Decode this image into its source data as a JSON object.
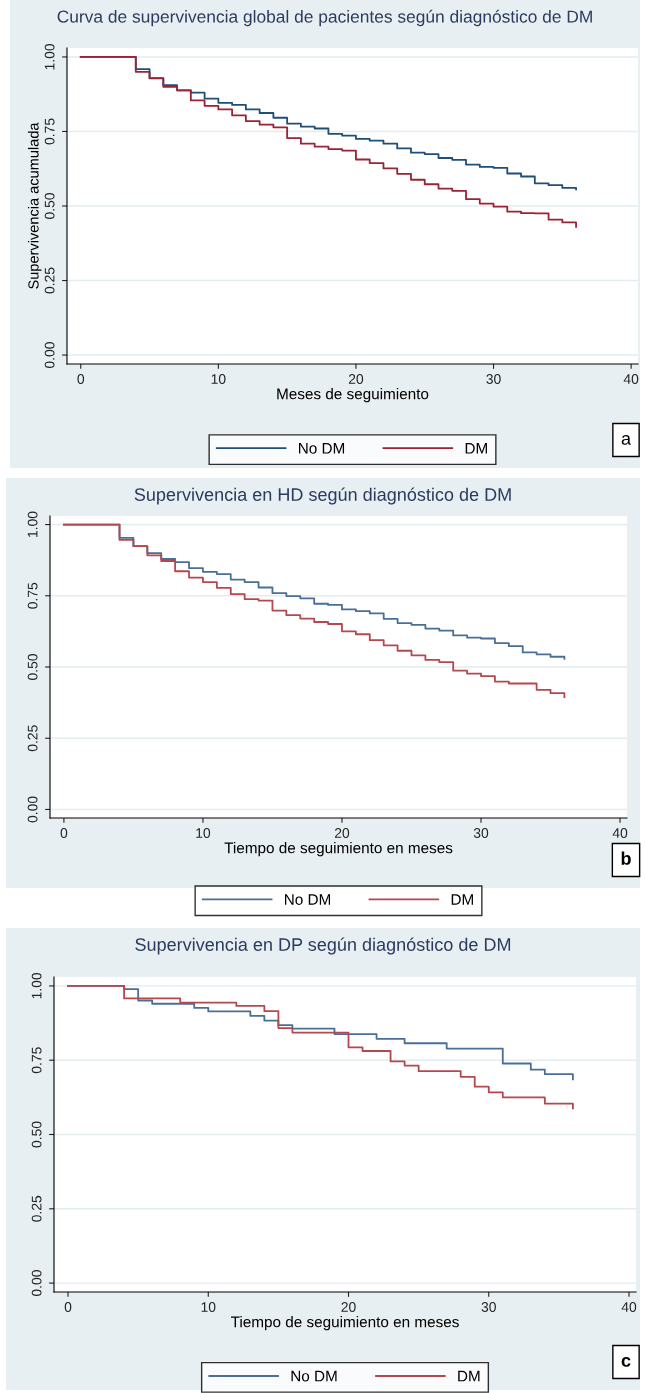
{
  "chart_data": [
    {
      "type": "step",
      "title": "Curva de supervivencia global de pacientes según diagnóstico de DM",
      "xlabel": "Meses de seguimiento",
      "ylabel": "Supervivencia acumulada",
      "annotations": [
        "a"
      ],
      "series": [
        {
          "name": "No DM",
          "color": "#1f4e79",
          "x": [
            0,
            4,
            5,
            6,
            7,
            8,
            9,
            10,
            11,
            12,
            13,
            14,
            15,
            16,
            17,
            18,
            19,
            20,
            21,
            22,
            23,
            24,
            25,
            26,
            27,
            28,
            29,
            30,
            31,
            32,
            33,
            34,
            35,
            36
          ],
          "values": [
            1,
            0.959,
            0.928,
            0.905,
            0.888,
            0.88,
            0.86,
            0.846,
            0.839,
            0.824,
            0.812,
            0.796,
            0.776,
            0.766,
            0.76,
            0.742,
            0.736,
            0.725,
            0.719,
            0.709,
            0.693,
            0.679,
            0.674,
            0.661,
            0.655,
            0.639,
            0.631,
            0.628,
            0.609,
            0.599,
            0.576,
            0.57,
            0.561,
            0.556
          ]
        },
        {
          "name": "DM",
          "color": "#9b2335",
          "x": [
            0,
            4,
            5,
            6,
            7,
            8,
            9,
            10,
            11,
            12,
            13,
            14,
            15,
            16,
            17,
            18,
            19,
            20,
            21,
            22,
            23,
            24,
            25,
            26,
            27,
            28,
            29,
            30,
            31,
            32,
            33,
            34,
            35,
            36
          ],
          "values": [
            1,
            0.95,
            0.929,
            0.9,
            0.888,
            0.854,
            0.836,
            0.824,
            0.804,
            0.785,
            0.773,
            0.764,
            0.728,
            0.709,
            0.699,
            0.691,
            0.686,
            0.656,
            0.644,
            0.626,
            0.608,
            0.588,
            0.573,
            0.558,
            0.551,
            0.523,
            0.508,
            0.498,
            0.481,
            0.476,
            0.475,
            0.454,
            0.445,
            0.43
          ]
        }
      ],
      "xlim": [
        -1,
        40.5
      ],
      "ylim": [
        -0.03,
        1.03
      ],
      "xticks": [
        0,
        10,
        20,
        30,
        40
      ],
      "yticks": [
        {
          "value": 0,
          "label": "0.00"
        },
        {
          "value": 0.25,
          "label": "0.25"
        },
        {
          "value": 0.5,
          "label": "0.50"
        },
        {
          "value": 0.75,
          "label": "0.75"
        },
        {
          "value": 1,
          "label": "1.00"
        }
      ],
      "grid": "y",
      "legend": "bottom"
    },
    {
      "type": "step",
      "title": "Supervivencia en HD según diagnóstico de DM",
      "xlabel": "Tiempo de seguimiento en meses",
      "annotations": [
        "b"
      ],
      "series": [
        {
          "name": "No DM",
          "color": "#4a6f96",
          "x": [
            0,
            4,
            5,
            6,
            7,
            8,
            9,
            10,
            11,
            12,
            13,
            14,
            15,
            16,
            17,
            18,
            19,
            20,
            21,
            22,
            23,
            24,
            25,
            26,
            27,
            28,
            29,
            30,
            31,
            32,
            33,
            34,
            35,
            36
          ],
          "values": [
            1,
            0.953,
            0.924,
            0.9,
            0.879,
            0.868,
            0.847,
            0.834,
            0.826,
            0.807,
            0.798,
            0.779,
            0.759,
            0.749,
            0.741,
            0.722,
            0.718,
            0.702,
            0.696,
            0.688,
            0.669,
            0.654,
            0.648,
            0.635,
            0.628,
            0.611,
            0.603,
            0.6,
            0.584,
            0.573,
            0.551,
            0.544,
            0.536,
            0.529
          ]
        },
        {
          "name": "DM",
          "color": "#b5474f",
          "x": [
            0,
            4,
            5,
            6,
            7,
            8,
            9,
            10,
            11,
            12,
            13,
            14,
            15,
            16,
            17,
            18,
            19,
            20,
            21,
            22,
            23,
            24,
            25,
            26,
            27,
            28,
            29,
            30,
            31,
            32,
            33,
            34,
            35,
            36
          ],
          "values": [
            1,
            0.946,
            0.924,
            0.892,
            0.872,
            0.836,
            0.814,
            0.798,
            0.778,
            0.756,
            0.738,
            0.733,
            0.698,
            0.682,
            0.67,
            0.658,
            0.651,
            0.625,
            0.615,
            0.594,
            0.576,
            0.557,
            0.541,
            0.525,
            0.517,
            0.487,
            0.477,
            0.468,
            0.449,
            0.442,
            0.442,
            0.42,
            0.408,
            0.394
          ]
        }
      ],
      "xlim": [
        -1,
        40.5
      ],
      "ylim": [
        -0.03,
        1.03
      ],
      "xticks": [
        0,
        10,
        20,
        30,
        40
      ],
      "yticks": [
        {
          "value": 0,
          "label": "0.00"
        },
        {
          "value": 0.25,
          "label": "0.25"
        },
        {
          "value": 0.5,
          "label": "0.50"
        },
        {
          "value": 0.75,
          "label": "0.75"
        },
        {
          "value": 1,
          "label": "1.00"
        }
      ],
      "grid": "y",
      "legend": "bottom"
    },
    {
      "type": "step",
      "title": "Supervivencia en DP según diagnóstico de DM",
      "xlabel": "Tiempo de seguimiento en meses",
      "annotations": [
        "c"
      ],
      "series": [
        {
          "name": "No DM",
          "color": "#4a6f96",
          "x": [
            0,
            4,
            5,
            6,
            9,
            10,
            13,
            14,
            15,
            16,
            19,
            22,
            24,
            27,
            31,
            33,
            34,
            36
          ],
          "values": [
            1,
            0.989,
            0.951,
            0.94,
            0.926,
            0.914,
            0.899,
            0.883,
            0.868,
            0.856,
            0.838,
            0.822,
            0.807,
            0.789,
            0.739,
            0.718,
            0.703,
            0.686
          ]
        },
        {
          "name": "DM",
          "color": "#b5474f",
          "x": [
            0,
            4,
            8,
            12,
            14,
            15,
            16,
            20,
            21,
            23,
            24,
            25,
            28,
            29,
            30,
            31,
            34,
            36
          ],
          "values": [
            1,
            0.958,
            0.944,
            0.933,
            0.915,
            0.858,
            0.843,
            0.793,
            0.781,
            0.746,
            0.732,
            0.713,
            0.694,
            0.661,
            0.642,
            0.625,
            0.604,
            0.588
          ]
        }
      ],
      "xlim": [
        -1,
        40.5
      ],
      "ylim": [
        -0.03,
        1.03
      ],
      "xticks": [
        0,
        10,
        20,
        30,
        40
      ],
      "yticks": [
        {
          "value": 0,
          "label": "0.00"
        },
        {
          "value": 0.25,
          "label": "0.25"
        },
        {
          "value": 0.5,
          "label": "0.50"
        },
        {
          "value": 0.75,
          "label": "0.75"
        },
        {
          "value": 1,
          "label": "1.00"
        }
      ],
      "grid": "y",
      "legend": "bottom"
    }
  ]
}
